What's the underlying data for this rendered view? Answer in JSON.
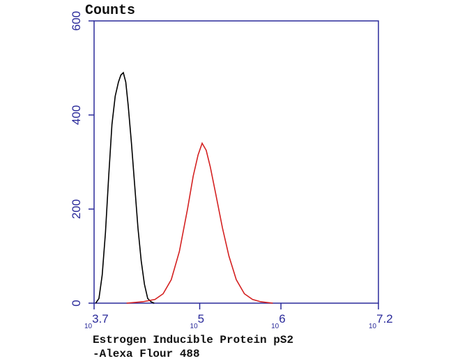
{
  "chart_data": {
    "type": "line",
    "title": "Counts",
    "x_label_lines": [
      "Estrogen Inducible Protein pS2",
      "-Alexa Flour 488"
    ],
    "xscale": "log",
    "xlim": [
      3.7,
      7.2
    ],
    "xticks": [
      {
        "value": 3.7,
        "base": "10",
        "label": "3.7"
      },
      {
        "value": 5,
        "base": "10",
        "label": "5"
      },
      {
        "value": 6,
        "base": "10",
        "label": "6"
      },
      {
        "value": 7.2,
        "base": "10",
        "label": "7.2"
      }
    ],
    "ylim": [
      0,
      600
    ],
    "yticks": [
      0,
      200,
      400,
      600
    ],
    "axis_color": "#2a2a9a",
    "series": [
      {
        "color": "#000000",
        "x": [
          3.72,
          3.76,
          3.8,
          3.84,
          3.88,
          3.92,
          3.96,
          4.0,
          4.03,
          4.06,
          4.09,
          4.12,
          4.16,
          4.2,
          4.24,
          4.28,
          4.32,
          4.36,
          4.4,
          4.44
        ],
        "values": [
          0,
          10,
          60,
          150,
          270,
          380,
          440,
          470,
          485,
          490,
          470,
          420,
          340,
          250,
          160,
          90,
          40,
          10,
          3,
          0
        ]
      },
      {
        "color": "#d42020",
        "x": [
          4.1,
          4.3,
          4.45,
          4.55,
          4.65,
          4.75,
          4.85,
          4.92,
          4.98,
          5.03,
          5.08,
          5.13,
          5.2,
          5.28,
          5.36,
          5.45,
          5.55,
          5.65,
          5.75,
          5.9
        ],
        "values": [
          0,
          3,
          8,
          20,
          50,
          110,
          200,
          270,
          315,
          340,
          325,
          290,
          230,
          160,
          100,
          50,
          20,
          8,
          3,
          0
        ]
      }
    ]
  }
}
